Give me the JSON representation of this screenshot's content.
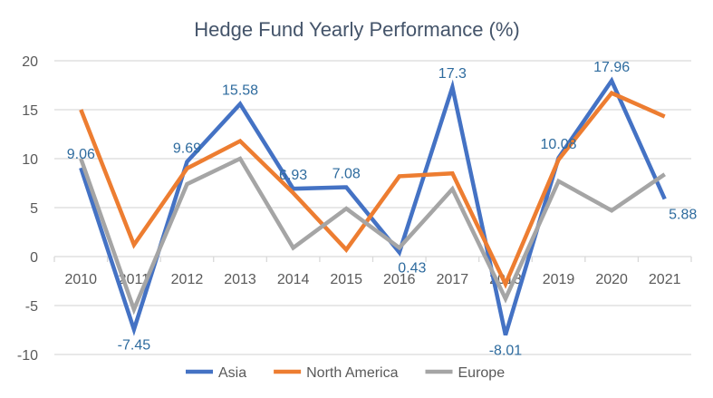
{
  "chart_data": {
    "type": "line",
    "title": "Hedge Fund Yearly Performance (%)",
    "xlabel": "",
    "ylabel": "",
    "categories": [
      "2010",
      "2011",
      "2012",
      "2013",
      "2014",
      "2015",
      "2016",
      "2017",
      "2018",
      "2019",
      "2020",
      "2021"
    ],
    "ylim": [
      -10,
      20
    ],
    "yticks": [
      -10,
      -5,
      0,
      5,
      10,
      15,
      20
    ],
    "grid": true,
    "legend": "bottom",
    "series": [
      {
        "name": "Asia",
        "color": "#4472c4",
        "values": [
          9.06,
          -7.45,
          9.69,
          15.58,
          6.93,
          7.08,
          0.43,
          17.3,
          -8.01,
          10.08,
          17.96,
          5.88
        ],
        "data_labels": true
      },
      {
        "name": "North America",
        "color": "#ed7d31",
        "values": [
          15.0,
          1.2,
          9.0,
          11.8,
          6.5,
          0.7,
          8.2,
          8.5,
          -2.8,
          9.9,
          16.7,
          14.3
        ],
        "data_labels": false
      },
      {
        "name": "Europe",
        "color": "#a5a5a5",
        "values": [
          10.0,
          -5.4,
          7.4,
          10.0,
          0.9,
          4.9,
          0.9,
          6.9,
          -4.3,
          7.7,
          4.7,
          8.4
        ],
        "data_labels": false
      }
    ]
  }
}
